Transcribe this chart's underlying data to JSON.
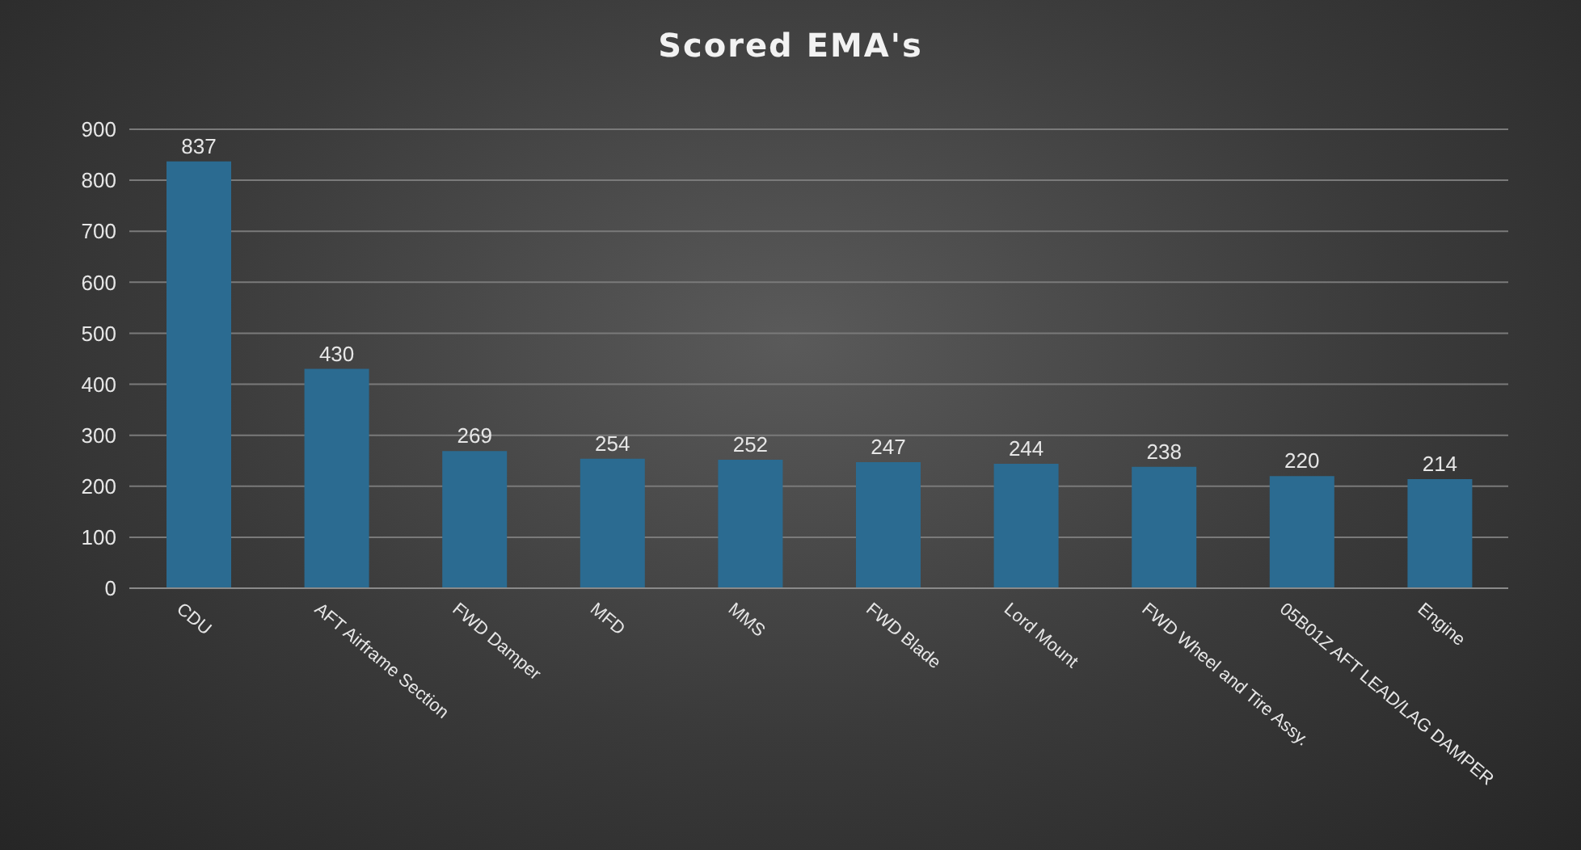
{
  "chart_data": {
    "type": "bar",
    "title": "Scored EMA's",
    "categories": [
      "CDU",
      "AFT Airframe Section",
      "FWD Damper",
      "MFD",
      "MMS",
      "FWD Blade",
      "Lord Mount",
      "FWD Wheel and Tire Assy.",
      "05B01Z AFT LEAD/LAG DAMPER",
      "Engine"
    ],
    "values": [
      837,
      430,
      269,
      254,
      252,
      247,
      244,
      238,
      220,
      214
    ],
    "color": "#2b6b91",
    "ylim": [
      0,
      900
    ],
    "yticks": [
      0,
      100,
      200,
      300,
      400,
      500,
      600,
      700,
      800,
      900
    ],
    "grid": "y",
    "data_labels": true
  }
}
